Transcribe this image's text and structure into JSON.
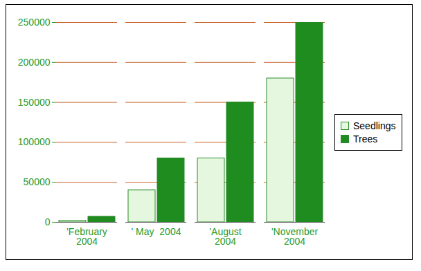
{
  "chart_data": {
    "type": "bar",
    "categories": [
      "'February\n2004",
      "' May  2004",
      "'August\n2004",
      "'November\n2004"
    ],
    "series": [
      {
        "name": "Seedlings",
        "color": "#e6f7df",
        "values": [
          2000,
          40000,
          80000,
          180000
        ]
      },
      {
        "name": "Trees",
        "color": "#1e8c1e",
        "values": [
          7000,
          80000,
          150000,
          250000
        ]
      }
    ],
    "ylim": [
      0,
      250000
    ],
    "yticks": [
      0,
      50000,
      100000,
      150000,
      200000,
      250000
    ],
    "grid": true,
    "legend": "right"
  }
}
